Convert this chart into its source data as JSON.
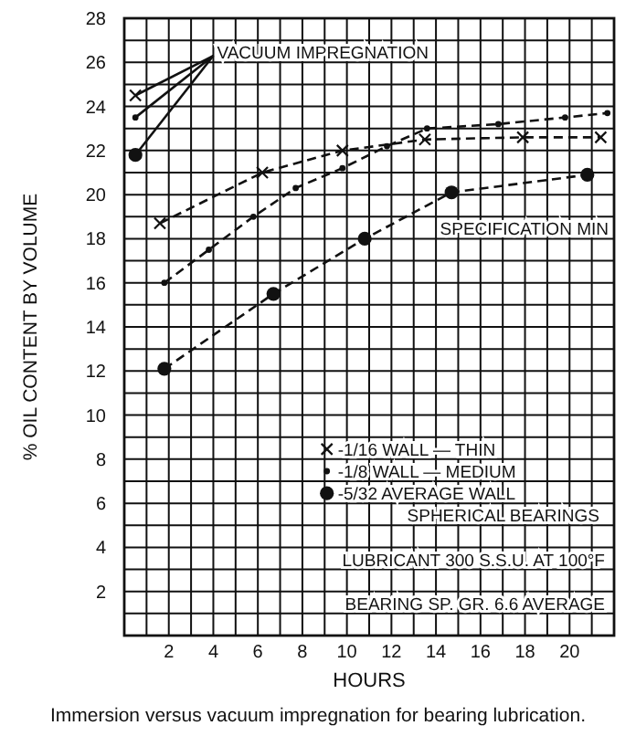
{
  "chart_data": {
    "type": "line",
    "xlabel": "HOURS",
    "ylabel": "% OIL CONTENT BY VOLUME",
    "xlim": [
      0,
      22
    ],
    "ylim": [
      0,
      28
    ],
    "xticks": [
      {
        "value": 1,
        "label": null
      },
      2,
      {
        "value": 3,
        "label": null
      },
      4,
      {
        "value": 5,
        "label": null
      },
      6,
      {
        "value": 7,
        "label": null
      },
      8,
      {
        "value": 9,
        "label": null
      },
      10,
      {
        "value": 11,
        "label": null
      },
      12,
      {
        "value": 13,
        "label": null
      },
      14,
      {
        "value": 15,
        "label": null
      },
      16,
      {
        "value": 17,
        "label": null
      },
      18,
      {
        "value": 19,
        "label": null
      },
      20,
      {
        "value": 21,
        "label": null
      }
    ],
    "yticks": [
      {
        "value": 1,
        "label": null
      },
      2,
      {
        "value": 3,
        "label": null
      },
      4,
      {
        "value": 5,
        "label": null
      },
      6,
      {
        "value": 7,
        "label": null
      },
      8,
      {
        "value": 9,
        "label": null
      },
      10,
      {
        "value": 11,
        "label": null
      },
      12,
      {
        "value": 13,
        "label": null
      },
      14,
      {
        "value": 15,
        "label": null
      },
      16,
      {
        "value": 17,
        "label": null
      },
      18,
      {
        "value": 19,
        "label": null
      },
      20,
      {
        "value": 21,
        "label": null
      },
      22,
      {
        "value": 23,
        "label": null
      },
      24,
      {
        "value": 25,
        "label": null
      },
      26,
      {
        "value": 27,
        "label": null
      },
      28
    ],
    "grid": true,
    "legend": "right",
    "series": [
      {
        "name": "-1/16 WALL — THIN",
        "color": "#111111",
        "marker": "cross",
        "line_style": "dashed",
        "x": [
          1.6,
          6.2,
          9.8,
          13.5,
          17.9,
          21.4
        ],
        "values": [
          18.7,
          21,
          22,
          22.5,
          22.6,
          22.6
        ]
      },
      {
        "name": "-1/8 WALL — MEDIUM",
        "color": "#111111",
        "marker": "circle",
        "line_style": "dashed",
        "x": [
          1.8,
          3.8,
          5.8,
          7.7,
          9.8,
          11.8,
          13.6,
          16.8,
          19.8,
          21.7
        ],
        "values": [
          16,
          17.5,
          19,
          20.3,
          21.2,
          22.2,
          23,
          23.2,
          23.5,
          23.7
        ]
      },
      {
        "name": "-5/32 AVERAGE WALL",
        "color": "#111111",
        "marker": "circle",
        "line_style": "dashed",
        "x": [
          1.8,
          6.7,
          10.8,
          14.7,
          20.8
        ],
        "values": [
          12.1,
          15.5,
          18,
          20.1,
          20.9
        ]
      },
      {
        "type": "line",
        "color": "#111111",
        "marker": "none",
        "line_style": "solid",
        "x": [
          0.5,
          4
        ],
        "values": [
          24.5,
          26.3
        ]
      },
      {
        "type": "line",
        "color": "#111111",
        "marker": "none",
        "line_style": "solid",
        "x": [
          0.5,
          4
        ],
        "values": [
          23.5,
          26.3
        ]
      },
      {
        "type": "line",
        "color": "#111111",
        "marker": "none",
        "line_style": "solid",
        "x": [
          0.5,
          4
        ],
        "values": [
          21.8,
          26.3
        ]
      },
      {
        "type": "scatter",
        "color": "#111111",
        "marker": "cross",
        "x": [
          0.5
        ],
        "values": [
          24.5
        ]
      },
      {
        "type": "scatter",
        "color": "#111111",
        "marker": "circle",
        "x": [
          0.5
        ],
        "values": [
          23.5
        ]
      },
      {
        "type": "scatter",
        "color": "#111111",
        "marker": "circle",
        "x": [
          0.5
        ],
        "values": [
          21.8
        ]
      }
    ],
    "annotations": [
      {
        "text": "VACUUM IMPREGNATION",
        "x": 4,
        "y": 26.3
      },
      "SPECIFICATION MIN",
      "SPHERICAL BEARINGS",
      "LUBRICANT 300 S.S.U. AT 100°F",
      "BEARING SP. GR. 6.6 AVERAGE",
      "Immersion versus vacuum impregnation for bearing lubrication."
    ]
  }
}
